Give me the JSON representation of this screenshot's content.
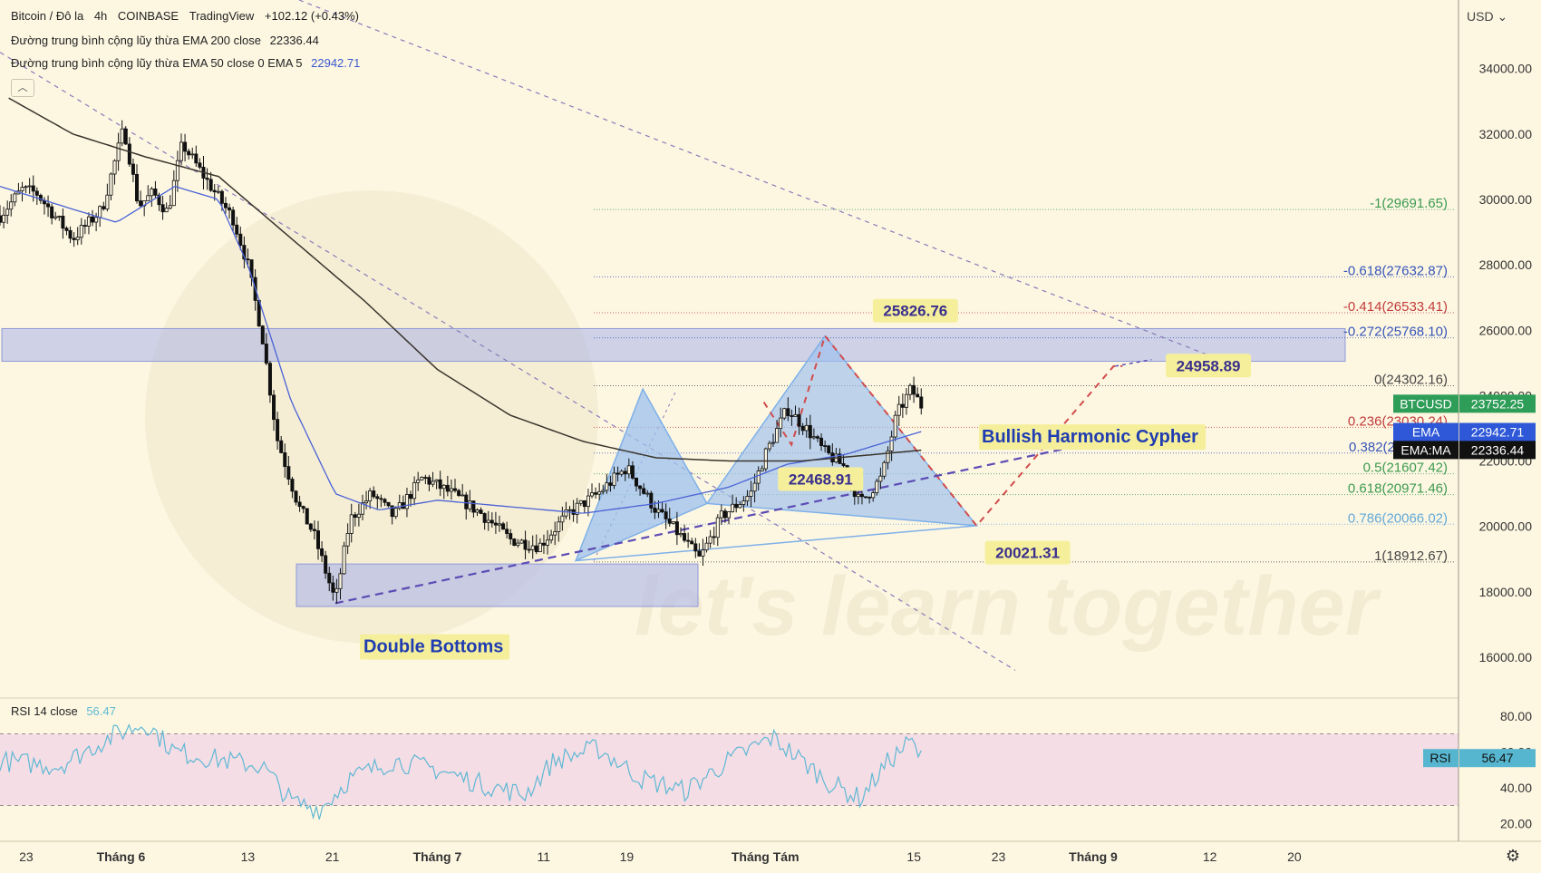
{
  "header": {
    "symbol": "Bitcoin / Đô la",
    "interval": "4h",
    "exchange": "COINBASE",
    "source": "TradingView",
    "change": "+102.12 (+0.43%)",
    "ema200_label": "Đường trung bình cộng lũy thừa EMA 200 close",
    "ema200_value": "22336.44",
    "ema50_label": "Đường trung bình cộng lũy thừa EMA 50 close 0 EMA 5",
    "ema50_value": "22942.71",
    "currency": "USD"
  },
  "colors": {
    "background": "#fdf7e2",
    "candle": "#111111",
    "ema200": "#3a342c",
    "ema50": "#4a62d6",
    "pattern_fill": "#9cc0ee",
    "zone_fill": "#aab4ea",
    "rsi_line": "#5fb8d4",
    "rsi_band": "#f3d6e6",
    "fib_green": "#3c9a50",
    "fib_blue": "#3655b8",
    "fib_red": "#c23b3b",
    "fib_light": "#62a8d8",
    "price_tag": "#2e9d58",
    "ema_tag": "#2f58d8",
    "emama_tag": "#111111",
    "annotation_bg": "#f5ef9c",
    "annotation_text": "#1f3cb0"
  },
  "fib_levels": [
    {
      "label": "-1(29691.65)",
      "price": 29691.65,
      "color": "#3c9a50"
    },
    {
      "label": "-0.618(27632.87)",
      "price": 27632.87,
      "color": "#3655b8"
    },
    {
      "label": "-0.414(26533.41)",
      "price": 26533.41,
      "color": "#c23b3b"
    },
    {
      "label": "-0.272(25768.10)",
      "price": 25768.1,
      "color": "#3655b8"
    },
    {
      "label": "0(24302.16)",
      "price": 24302.16,
      "color": "#444444"
    },
    {
      "label": "0.236(23030.24)",
      "price": 23030.24,
      "color": "#c23b3b"
    },
    {
      "label": "0.382(22243.11)",
      "price": 22243.11,
      "color": "#3655b8"
    },
    {
      "label": "0.5(21607.42)",
      "price": 21607.42,
      "color": "#3c9a50"
    },
    {
      "label": "0.618(20971.46)",
      "price": 20971.46,
      "color": "#3c9a50"
    },
    {
      "label": "0.786(20066.02)",
      "price": 20066.02,
      "color": "#62a8d8"
    },
    {
      "label": "1(18912.67)",
      "price": 18912.67,
      "color": "#444444"
    }
  ],
  "price_tags": [
    {
      "name": "BTCUSD",
      "value": "23752.25",
      "price": 23752.25,
      "color": "#2e9d58"
    },
    {
      "name": "EMA",
      "value": "22942.71",
      "price": 22942.71,
      "color": "#2f58d8"
    },
    {
      "name": "EMA:MA",
      "value": "22336.44",
      "price": 22336.44,
      "color": "#111111"
    }
  ],
  "annotations": [
    {
      "text": "25826.76",
      "x": 0.628,
      "price": 26570
    },
    {
      "text": "24958.89",
      "x": 0.829,
      "price": 24890
    },
    {
      "text": "22468.91",
      "x": 0.563,
      "price": 21420
    },
    {
      "text": "20021.31",
      "x": 0.705,
      "price": 19170
    }
  ],
  "labels": {
    "pattern": "Bullish Harmonic Cypher",
    "double_bottom": "Double Bottoms",
    "watermark_line": "let's learn together"
  },
  "rsi": {
    "label": "RSI 14 close",
    "value": "56.47",
    "tag_name": "RSI",
    "upper": 70,
    "lower": 30
  },
  "chart_data": {
    "type": "candlestick",
    "title": "Bitcoin / Đô la · 4h · COINBASE",
    "ylabel": "USD",
    "y_ticks": [
      16000,
      18000,
      20000,
      22000,
      24000,
      26000,
      28000,
      30000,
      32000,
      34000
    ],
    "x_ticks": [
      "23",
      "Tháng 6",
      "13",
      "21",
      "Tháng 7",
      "11",
      "19",
      "Tháng Tám",
      "15",
      "23",
      "Tháng 9",
      "12",
      "20"
    ],
    "ylim": [
      14750,
      36100
    ],
    "grid": false,
    "price_path": [
      [
        0,
        29500
      ],
      [
        0.015,
        30300
      ],
      [
        0.025,
        30200
      ],
      [
        0.05,
        28800
      ],
      [
        0.07,
        29700
      ],
      [
        0.085,
        32200
      ],
      [
        0.095,
        29800
      ],
      [
        0.105,
        30200
      ],
      [
        0.115,
        29600
      ],
      [
        0.125,
        31700
      ],
      [
        0.14,
        30700
      ],
      [
        0.16,
        29400
      ],
      [
        0.17,
        28000
      ],
      [
        0.18,
        25800
      ],
      [
        0.19,
        22700
      ],
      [
        0.205,
        20600
      ],
      [
        0.215,
        19800
      ],
      [
        0.23,
        17700
      ],
      [
        0.24,
        20200
      ],
      [
        0.255,
        21000
      ],
      [
        0.27,
        20300
      ],
      [
        0.29,
        21500
      ],
      [
        0.31,
        21000
      ],
      [
        0.33,
        20400
      ],
      [
        0.35,
        19600
      ],
      [
        0.37,
        19400
      ],
      [
        0.39,
        20400
      ],
      [
        0.41,
        21000
      ],
      [
        0.43,
        21800
      ],
      [
        0.45,
        20500
      ],
      [
        0.465,
        19800
      ],
      [
        0.48,
        19000
      ],
      [
        0.495,
        20300
      ],
      [
        0.515,
        21000
      ],
      [
        0.525,
        22200
      ],
      [
        0.54,
        23600
      ],
      [
        0.555,
        22900
      ],
      [
        0.565,
        22300
      ],
      [
        0.58,
        21800
      ],
      [
        0.59,
        20700
      ],
      [
        0.605,
        21500
      ],
      [
        0.615,
        23400
      ],
      [
        0.625,
        24200
      ],
      [
        0.632,
        23700
      ]
    ],
    "ema50_path": [
      [
        0,
        30400
      ],
      [
        0.05,
        29700
      ],
      [
        0.08,
        29300
      ],
      [
        0.12,
        30400
      ],
      [
        0.15,
        30000
      ],
      [
        0.17,
        28000
      ],
      [
        0.2,
        23800
      ],
      [
        0.23,
        21000
      ],
      [
        0.26,
        20500
      ],
      [
        0.3,
        20800
      ],
      [
        0.35,
        20600
      ],
      [
        0.4,
        20400
      ],
      [
        0.45,
        20700
      ],
      [
        0.5,
        21200
      ],
      [
        0.54,
        21900
      ],
      [
        0.58,
        22200
      ],
      [
        0.632,
        22900
      ]
    ],
    "ema200_path": [
      [
        0.006,
        33100
      ],
      [
        0.05,
        32000
      ],
      [
        0.1,
        31300
      ],
      [
        0.15,
        30700
      ],
      [
        0.2,
        28800
      ],
      [
        0.25,
        26900
      ],
      [
        0.3,
        24800
      ],
      [
        0.35,
        23400
      ],
      [
        0.4,
        22600
      ],
      [
        0.45,
        22100
      ],
      [
        0.5,
        22000
      ],
      [
        0.55,
        22000
      ],
      [
        0.6,
        22200
      ],
      [
        0.632,
        22330
      ]
    ],
    "rsi_path": [
      [
        0,
        55
      ],
      [
        0.04,
        52
      ],
      [
        0.08,
        70
      ],
      [
        0.1,
        76
      ],
      [
        0.12,
        60
      ],
      [
        0.14,
        57
      ],
      [
        0.18,
        52
      ],
      [
        0.2,
        32
      ],
      [
        0.22,
        28
      ],
      [
        0.24,
        45
      ],
      [
        0.27,
        55
      ],
      [
        0.3,
        50
      ],
      [
        0.33,
        42
      ],
      [
        0.36,
        36
      ],
      [
        0.38,
        55
      ],
      [
        0.41,
        62
      ],
      [
        0.44,
        45
      ],
      [
        0.47,
        38
      ],
      [
        0.5,
        55
      ],
      [
        0.53,
        68
      ],
      [
        0.55,
        55
      ],
      [
        0.57,
        42
      ],
      [
        0.59,
        34
      ],
      [
        0.61,
        55
      ],
      [
        0.625,
        66
      ],
      [
        0.632,
        56
      ]
    ],
    "rsi_ylim": [
      10,
      90
    ],
    "rsi_ticks": [
      20,
      40,
      60,
      80
    ]
  }
}
